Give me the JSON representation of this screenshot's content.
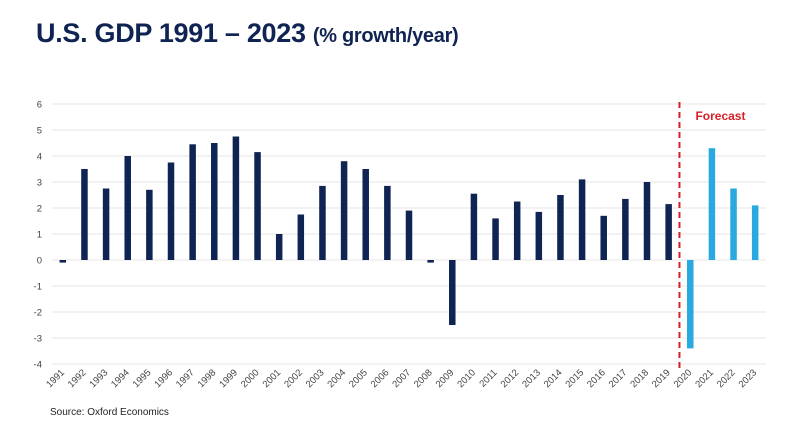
{
  "header": {
    "title_main": "U.S. GDP 1991 – 2023",
    "title_sub": "(% growth/year)"
  },
  "source": "Source: Oxford Economics",
  "chart_data": {
    "type": "bar",
    "title": "U.S. GDP 1991 – 2023 (% growth/year)",
    "xlabel": "",
    "ylabel": "",
    "ylim": [
      -4,
      6
    ],
    "yticks": [
      6,
      5,
      4,
      3,
      2,
      1,
      0,
      -1,
      -2,
      -3,
      -4
    ],
    "grid": true,
    "categories": [
      "1991",
      "1992",
      "1993",
      "1994",
      "1995",
      "1996",
      "1997",
      "1998",
      "1999",
      "2000",
      "2001",
      "2002",
      "2003",
      "2004",
      "2005",
      "2006",
      "2007",
      "2008",
      "2009",
      "2010",
      "2011",
      "2012",
      "2013",
      "2014",
      "2015",
      "2016",
      "2017",
      "2018",
      "2019",
      "2020",
      "2021",
      "2022",
      "2023"
    ],
    "series": [
      {
        "values": [
          -0.1,
          3.5,
          2.75,
          4.0,
          2.7,
          3.75,
          4.45,
          4.5,
          4.75,
          4.15,
          1.0,
          1.75,
          2.85,
          3.8,
          3.5,
          2.85,
          1.9,
          -0.1,
          -2.5,
          2.55,
          1.6,
          2.25,
          1.85,
          2.5,
          3.1,
          1.7,
          2.35,
          3.0,
          2.15,
          -3.4,
          4.3,
          2.75,
          2.1
        ]
      }
    ],
    "forecast_start": "2020",
    "forecast_label": "Forecast",
    "colors": {
      "actual": "#0f2452",
      "forecast": "#29a9e0",
      "forecast_line": "#d61f26",
      "grid": "#e6e6e6",
      "axis_text": "#444444"
    }
  }
}
